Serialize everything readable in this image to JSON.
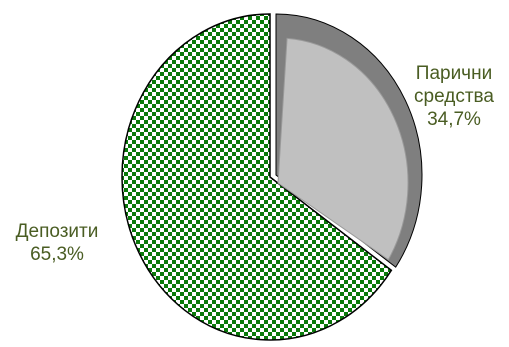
{
  "chart_data": {
    "type": "pie",
    "categories": [
      "Парични средства",
      "Депозити"
    ],
    "values": [
      34.7,
      65.3
    ],
    "unit": "%",
    "labels": [
      {
        "lines": [
          "Парични",
          "средства",
          "34,7%"
        ]
      },
      {
        "lines": [
          "Депозити",
          "65,3%"
        ]
      }
    ],
    "colors": {
      "cash_face": "#c0c0c0",
      "cash_edge": "#7f7f7f",
      "deposits_pattern_fg": "#0a7a0a",
      "deposits_pattern_bg": "#ffffff",
      "label_text": "#4a5d23",
      "outline": "#000000"
    },
    "patterns": [
      "solid-grey-exploded",
      "checkerboard-green"
    ],
    "legend": "none",
    "title": ""
  }
}
